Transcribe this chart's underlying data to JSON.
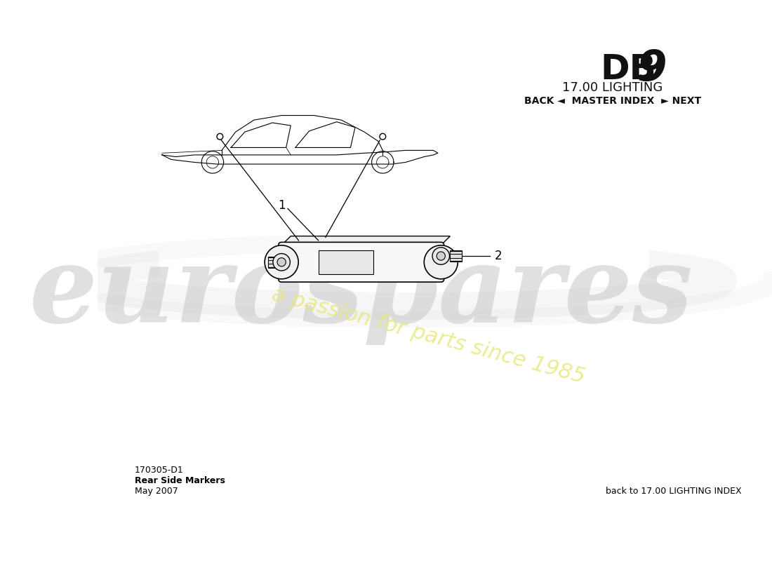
{
  "title_db9": "DB 9",
  "title_section": "17.00 LIGHTING",
  "nav_text": "BACK ◄  MASTER INDEX  ► NEXT",
  "footer_left_line1": "170305-D1",
  "footer_left_line2": "Rear Side Markers",
  "footer_left_line3": "May 2007",
  "footer_right": "back to 17.00 LIGHTING INDEX",
  "watermark_line1": "eurospares",
  "watermark_line2": "a passion for parts since 1985",
  "part_labels": [
    "1",
    "2"
  ],
  "bg_color": "#ffffff",
  "line_color": "#000000",
  "watermark_color_gray": "#c8c8c8",
  "watermark_color_yellow": "#e8e880"
}
